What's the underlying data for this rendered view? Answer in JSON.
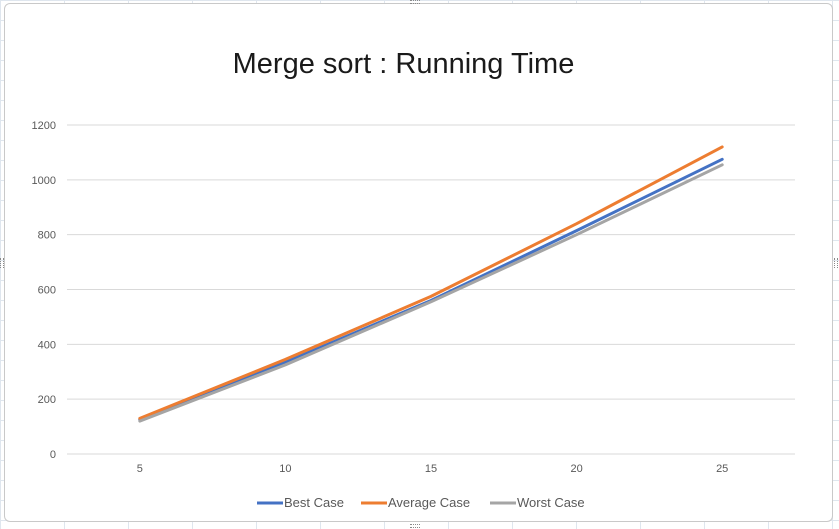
{
  "chart_data": {
    "type": "line",
    "title": "Merge sort : Running Time",
    "x": [
      5,
      10,
      15,
      20,
      25
    ],
    "ylim": [
      0,
      1200
    ],
    "y_ticks": [
      0,
      200,
      400,
      600,
      800,
      1000,
      1200
    ],
    "grid": true,
    "legend_position": "bottom",
    "series": [
      {
        "name": "Best Case",
        "color": "#4472c4",
        "values": [
          125,
          335,
          560,
          815,
          1075
        ]
      },
      {
        "name": "Average Case",
        "color": "#ed7d31",
        "values": [
          130,
          345,
          575,
          840,
          1120
        ]
      },
      {
        "name": "Worst Case",
        "color": "#a5a5a5",
        "values": [
          120,
          325,
          555,
          800,
          1055
        ]
      }
    ]
  }
}
